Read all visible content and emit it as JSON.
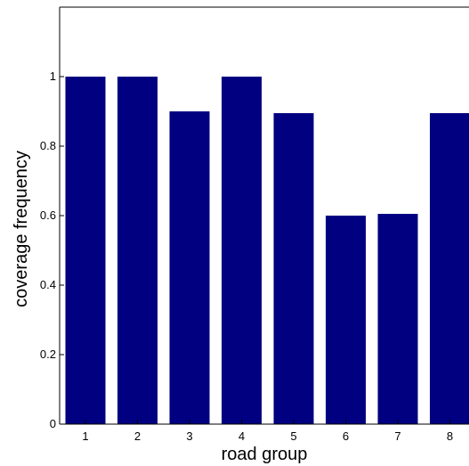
{
  "chart_data": {
    "type": "bar",
    "title": "",
    "xlabel": "road group",
    "ylabel": "coverage frequency",
    "categories": [
      "1",
      "2",
      "3",
      "4",
      "5",
      "6",
      "7",
      "8"
    ],
    "values": [
      1.0,
      1.0,
      0.9,
      1.0,
      0.895,
      0.6,
      0.605,
      0.895
    ],
    "ylim": [
      0,
      1.2
    ],
    "yticks": [
      0,
      0.2,
      0.4,
      0.6,
      0.8,
      1
    ],
    "ytick_labels": [
      "0",
      "0.2",
      "0.4",
      "0.6",
      "0.8",
      "1"
    ],
    "bar_color": "#000080",
    "grid": false,
    "legend": "none"
  }
}
